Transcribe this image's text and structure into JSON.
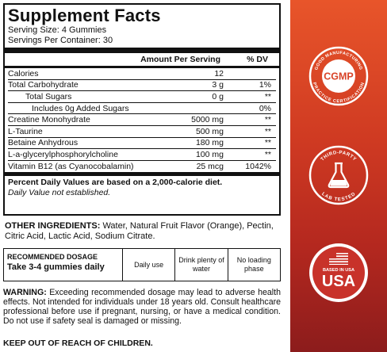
{
  "facts": {
    "title": "Supplement Facts",
    "serving_size": "Serving Size: 4 Gummies",
    "servings_per_container": "Servings Per Container: 30",
    "col_amount": "Amount Per Serving",
    "col_dv": "% DV",
    "rows": [
      {
        "name": "Calories",
        "amount": "12",
        "dv": ""
      },
      {
        "name": "Total Carbohydrate",
        "amount": "3 g",
        "dv": "1%"
      },
      {
        "name": "Total Sugars",
        "amount": "0 g",
        "dv": "**"
      },
      {
        "name": "Includes 0g Added Sugars",
        "amount": "",
        "dv": "0%"
      },
      {
        "name": "Creatine Monohydrate",
        "amount": "5000 mg",
        "dv": "**"
      },
      {
        "name": "L-Taurine",
        "amount": "500 mg",
        "dv": "**"
      },
      {
        "name": "Betaine Anhydrous",
        "amount": "180 mg",
        "dv": "**"
      },
      {
        "name": "L-a-glycerylphosphorylcholine",
        "amount": "100 mg",
        "dv": "**"
      },
      {
        "name": "Vitamin B12 (as Cyanocobalamin)",
        "amount": "25 mcg",
        "dv": "1042%"
      }
    ],
    "footnote_bold": "Percent Daily Values are based on a 2,000-calorie diet.",
    "footnote_italic": "Daily Value not established."
  },
  "other_ingredients": {
    "label": "OTHER INGREDIENTS:",
    "text": " Water, Natural Fruit Flavor (Orange), Pectin, Citric Acid, Lactic Acid, Sodium Citrate."
  },
  "dosage": {
    "label": "RECOMMENDED DOSAGE",
    "instruction": "Take 3-4 gummies daily",
    "cells": [
      "Daily use",
      "Drink plenty of water",
      "No loading phase"
    ]
  },
  "warning": {
    "label": "WARNING:",
    "text": " Exceeding recommended dosage may lead to adverse health effects. Not intended for individuals under 18 years old. Consult healthcare professional before use if pregnant, nursing, or have a medical condition. Do not use if safety seal is damaged or missing."
  },
  "keep_out": "KEEP OUT OF REACH OF CHILDREN.",
  "badges": {
    "cgmp": {
      "center": "CGMP",
      "arc_top": "GOOD MANUFACTURING",
      "arc_bottom": "PRACTICE CERTIFICATION"
    },
    "lab": {
      "arc_top": "THIRD-PARTY",
      "arc_bottom": "LAB TESTED"
    },
    "usa": {
      "small": "BASED IN USA",
      "big": "USA"
    }
  },
  "colors": {
    "ribbon_top": "#e8552a",
    "ribbon_bottom": "#8c1c1c",
    "badge_white": "#ffffff",
    "badge_red": "#c8322a"
  }
}
